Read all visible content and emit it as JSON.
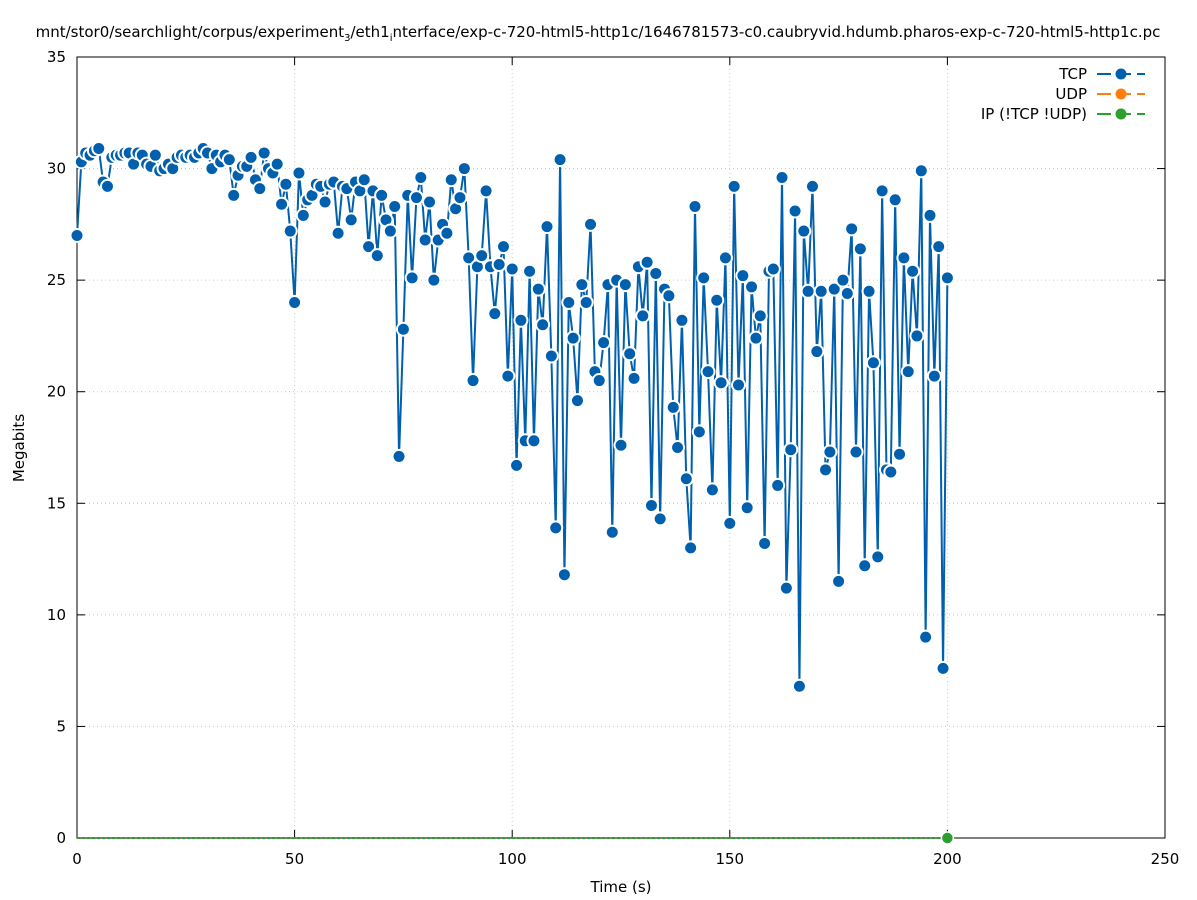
{
  "chart_data": {
    "type": "line",
    "title": {
      "pre": "mnt/stor0/searchlight/corpus/experiment",
      "sub1": "3",
      "mid": "/eth1",
      "sub2": "i",
      "post": "nterface/exp-c-720-html5-http1c/1646781573-c0.caubryvid.hdumb.pharos-exp-c-720-html5-http1c.pc"
    },
    "xlabel": "Time (s)",
    "ylabel": "Megabits",
    "xlim": [
      0,
      250
    ],
    "ylim": [
      0,
      35
    ],
    "xticks": [
      "0",
      "50",
      "100",
      "150",
      "200",
      "250"
    ],
    "yticks": [
      "0",
      "5",
      "10",
      "15",
      "20",
      "25",
      "30",
      "35"
    ],
    "grid": true,
    "legend_position": "top-right",
    "series": [
      {
        "name": "TCP",
        "color": "#0060ad",
        "x_start": 0,
        "x_step": 1,
        "values": [
          27.0,
          30.3,
          30.7,
          30.6,
          30.8,
          30.9,
          29.4,
          29.2,
          30.5,
          30.6,
          30.6,
          30.7,
          30.7,
          30.2,
          30.7,
          30.6,
          30.2,
          30.1,
          30.6,
          29.9,
          30.0,
          30.2,
          30.0,
          30.5,
          30.6,
          30.5,
          30.6,
          30.5,
          30.7,
          30.9,
          30.7,
          30.0,
          30.6,
          30.3,
          30.6,
          30.4,
          28.8,
          29.7,
          30.1,
          30.1,
          30.5,
          29.5,
          29.1,
          30.7,
          30.0,
          29.8,
          30.2,
          28.4,
          29.3,
          27.2,
          24.0,
          29.8,
          27.9,
          28.6,
          28.8,
          29.3,
          29.2,
          28.5,
          29.3,
          29.4,
          27.1,
          29.2,
          29.1,
          27.7,
          29.4,
          29.0,
          29.5,
          26.5,
          29.0,
          26.1,
          28.8,
          27.7,
          27.2,
          28.3,
          17.1,
          22.8,
          28.8,
          25.1,
          28.7,
          29.6,
          26.8,
          28.5,
          25.0,
          26.8,
          27.5,
          27.1,
          29.5,
          28.2,
          28.7,
          30.0,
          26.0,
          20.5,
          25.6,
          26.1,
          29.0,
          25.6,
          23.5,
          25.7,
          26.5,
          20.7,
          25.5,
          16.7,
          23.2,
          17.8,
          25.4,
          17.8,
          24.6,
          23.0,
          27.4,
          21.6,
          13.9,
          30.4,
          11.8,
          24.0,
          22.4,
          19.6,
          24.8,
          24.0,
          27.5,
          20.9,
          20.5,
          22.2,
          24.8,
          13.7,
          25.0,
          17.6,
          24.8,
          21.7,
          20.6,
          25.6,
          23.4,
          25.8,
          14.9,
          25.3,
          14.3,
          24.6,
          24.3,
          19.3,
          17.5,
          23.2,
          16.1,
          13.0,
          28.3,
          18.2,
          25.1,
          20.9,
          15.6,
          24.1,
          20.4,
          26.0,
          14.1,
          29.2,
          20.3,
          25.2,
          14.8,
          24.7,
          22.4,
          23.4,
          13.2,
          25.4,
          25.5,
          15.8,
          29.6,
          11.2,
          17.4,
          28.1,
          6.8,
          27.2,
          24.5,
          29.2,
          21.8,
          24.5,
          16.5,
          17.3,
          24.6,
          11.5,
          25.0,
          24.4,
          27.3,
          17.3,
          26.4,
          12.2,
          24.5,
          21.3,
          12.6,
          29.0,
          16.5,
          16.4,
          28.6,
          17.2,
          26.0,
          20.9,
          25.4,
          22.5,
          29.9,
          9.0,
          27.9,
          20.7,
          26.5,
          7.6,
          25.1
        ]
      },
      {
        "name": "UDP",
        "color": "#ff7f0e",
        "values": []
      },
      {
        "name": "IP (!TCP  !UDP)",
        "color": "#2ca02c",
        "x_start": 0,
        "x_step": 1,
        "constant": 0,
        "count": 201,
        "marker_at": [
          200
        ]
      }
    ]
  }
}
